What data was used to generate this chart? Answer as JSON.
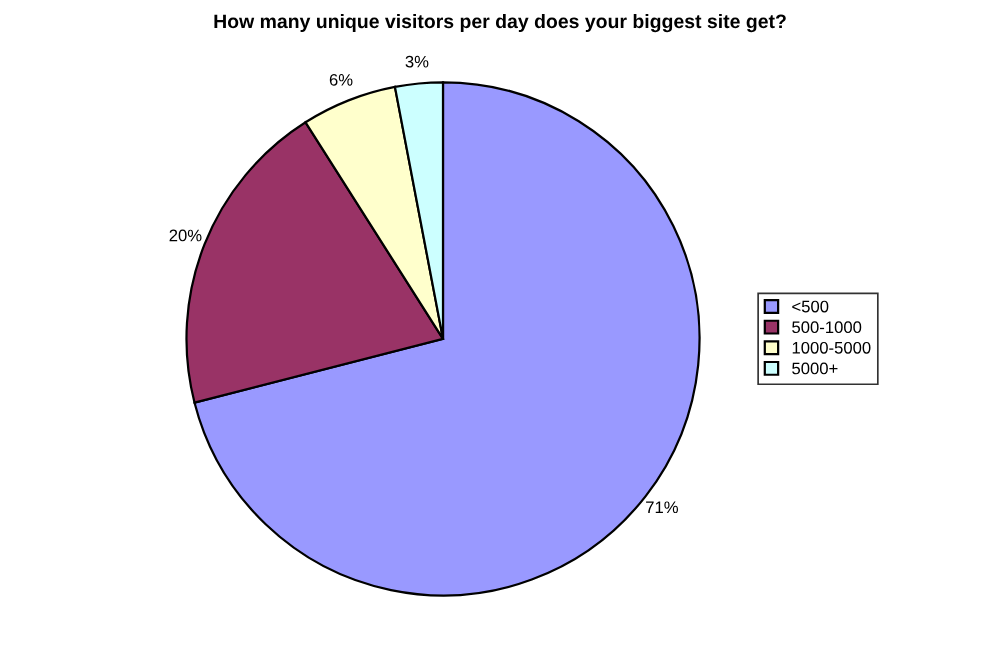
{
  "chart_data": {
    "type": "pie",
    "title": "How many unique visitors per day does your biggest site get?",
    "categories": [
      "<500",
      "500-1000",
      "1000-5000",
      "5000+"
    ],
    "values": [
      71,
      20,
      6,
      3
    ],
    "colors": [
      "#9999ff",
      "#993366",
      "#ffffcc",
      "#ccffff"
    ],
    "value_labels": [
      "71%",
      "20%",
      "6%",
      "3%"
    ],
    "legend": "right"
  }
}
